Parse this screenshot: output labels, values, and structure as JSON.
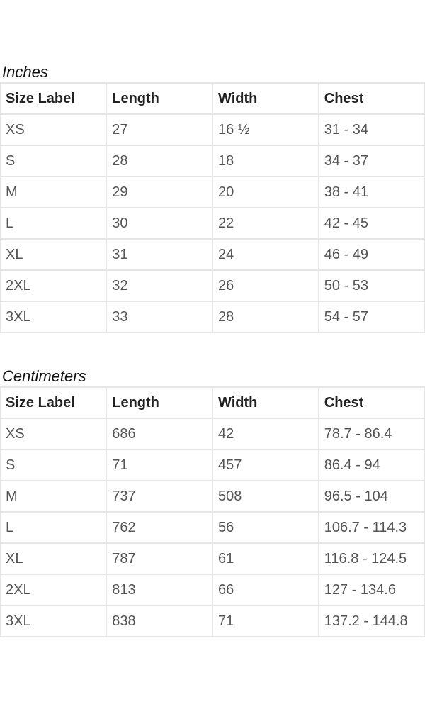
{
  "tables": [
    {
      "caption": "Inches",
      "headers": [
        "Size Label",
        "Length",
        "Width",
        "Chest"
      ],
      "rows": [
        [
          "XS",
          "27",
          "16 ½",
          "31 - 34"
        ],
        [
          "S",
          "28",
          "18",
          "34 - 37"
        ],
        [
          "M",
          "29",
          "20",
          "38 - 41"
        ],
        [
          "L",
          "30",
          "22",
          "42 - 45"
        ],
        [
          "XL",
          "31",
          "24",
          "46 - 49"
        ],
        [
          "2XL",
          "32",
          "26",
          "50 - 53"
        ],
        [
          "3XL",
          "33",
          "28",
          "54 - 57"
        ]
      ]
    },
    {
      "caption": "Centimeters",
      "headers": [
        "Size Label",
        "Length",
        "Width",
        "Chest"
      ],
      "rows": [
        [
          "XS",
          "686",
          "42",
          "78.7 - 86.4"
        ],
        [
          "S",
          "71",
          "457",
          "86.4 - 94"
        ],
        [
          "M",
          "737",
          "508",
          "96.5 - 104"
        ],
        [
          "L",
          "762",
          "56",
          "106.7 - 114.3"
        ],
        [
          "XL",
          "787",
          "61",
          "116.8 - 124.5"
        ],
        [
          "2XL",
          "813",
          "66",
          "127 - 134.6"
        ],
        [
          "3XL",
          "838",
          "71",
          "137.2 - 144.8"
        ]
      ]
    }
  ]
}
